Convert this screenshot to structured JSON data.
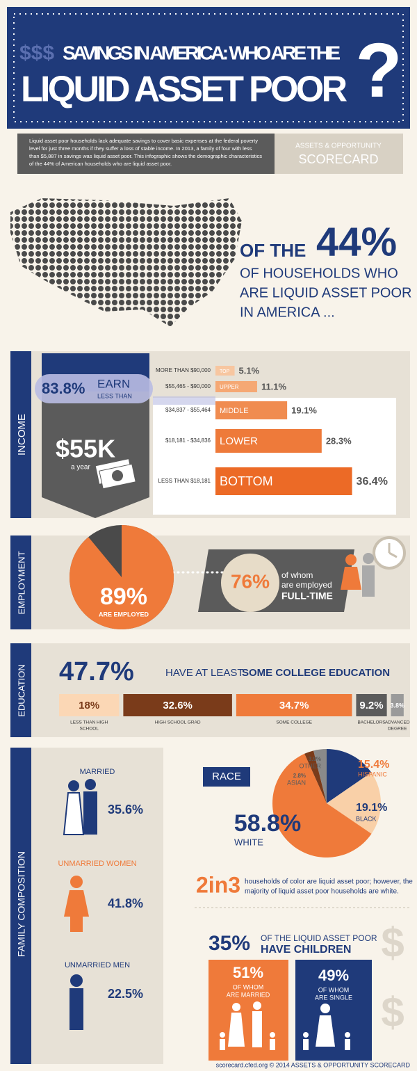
{
  "header": {
    "title_prefix": "$$$",
    "title_line1": "SAVINGS IN AMERICA: WHO ARE THE",
    "title_line2": "LIQUID ASSET POOR",
    "question_mark": "?"
  },
  "intro": {
    "text_lines": [
      "Liquid asset poor households lack adequate savings to cover basic expenses at the federal poverty",
      "level for just three months if they suffer a loss of stable income. In 2013, a family of four with less",
      "than $5,887 in savings was liquid asset poor. This infographic shows the demographic characteristics",
      "of the 44% of American households who are liquid asset poor."
    ],
    "brand_line1": "ASSETS & OPPORTUNITY",
    "brand_line2": "SCORECARD"
  },
  "headline": {
    "lead": "OF THE",
    "percent": "44%",
    "line2": "OF HOUSEHOLDS WHO",
    "line3": "ARE LIQUID ASSET POOR",
    "line4": "IN AMERICA ..."
  },
  "income": {
    "section": "INCOME",
    "share": "83.8%",
    "earn": "EARN",
    "less_than": "LESS THAN",
    "amount": "$55K",
    "per": "a year",
    "rows": [
      {
        "range": "MORE THAN $90,000",
        "tier": "TOP",
        "value": 5.1,
        "label": "5.1%"
      },
      {
        "range": "$55,465 - $90,000",
        "tier": "UPPER",
        "value": 11.1,
        "label": "11.1%"
      },
      {
        "range": "$34,837 - $55,464",
        "tier": "MIDDLE",
        "value": 19.1,
        "label": "19.1%"
      },
      {
        "range": "$18,181 - $34,836",
        "tier": "LOWER",
        "value": 28.3,
        "label": "28.3%"
      },
      {
        "range": "LESS THAN $18,181",
        "tier": "BOTTOM",
        "value": 36.4,
        "label": "36.4%"
      }
    ]
  },
  "employment": {
    "section": "EMPLOYMENT",
    "employed": {
      "value": 89,
      "label": "89%"
    },
    "employed_text": "ARE EMPLOYED",
    "full_time": "76%",
    "of_whom_1": "of whom",
    "of_whom_2": "are employed",
    "full_time_text": "FULL-TIME"
  },
  "education": {
    "section": "EDUCATION",
    "headline_pct": "47.7%",
    "headline_text": "HAVE AT LEAST",
    "headline_bold": "SOME COLLEGE EDUCATION",
    "levels": [
      {
        "value": 18,
        "label": "18%",
        "name": [
          "LESS THAN HIGH",
          "SCHOOL"
        ]
      },
      {
        "value": 32.6,
        "label": "32.6%",
        "name": [
          "HIGH SCHOOL GRAD"
        ]
      },
      {
        "value": 34.7,
        "label": "34.7%",
        "name": [
          "SOME COLLEGE"
        ]
      },
      {
        "value": 9.2,
        "label": "9.2%",
        "name": [
          "BACHELORS"
        ]
      },
      {
        "value": 3.8,
        "label": "3.8%",
        "name": [
          "ADVANCED",
          "DEGREE"
        ]
      }
    ]
  },
  "family": {
    "section": "FAMILY COMPOSITION",
    "groups": [
      {
        "name": "MARRIED",
        "label": "35.6%"
      },
      {
        "name": "UNMARRIED WOMEN",
        "label": "41.8%"
      },
      {
        "name": "UNMARRIED MEN",
        "label": "22.5%"
      }
    ]
  },
  "race": {
    "title": "RACE",
    "groups": [
      {
        "name": "HISPANIC",
        "value": 15.4,
        "label": "15.4%"
      },
      {
        "name": "BLACK",
        "value": 19.1,
        "label": "19.1%"
      },
      {
        "name": "WHITE",
        "value": 58.8,
        "label": "58.8%"
      },
      {
        "name": "ASIAN",
        "value": 2.8,
        "label": "2.8%"
      },
      {
        "name": "OTHER",
        "value": 3.9,
        "label": "3.9%"
      }
    ]
  },
  "color_note": {
    "big": "2in3",
    "line1": "households of color are liquid asset poor; however, the",
    "line2": "majority of liquid asset poor households are white."
  },
  "children": {
    "pct": "35%",
    "line1": "OF THE LIQUID ASSET POOR",
    "line2": "HAVE CHILDREN",
    "married": {
      "pct": "51%",
      "line1": "OF WHOM",
      "line2": "ARE MARRIED"
    },
    "single": {
      "pct": "49%",
      "line1": "OF WHOM",
      "line2": "ARE SINGLE"
    }
  },
  "footer": "scorecard.cfed.org © 2014 ASSETS & OPPORTUNITY SCORECARD"
}
